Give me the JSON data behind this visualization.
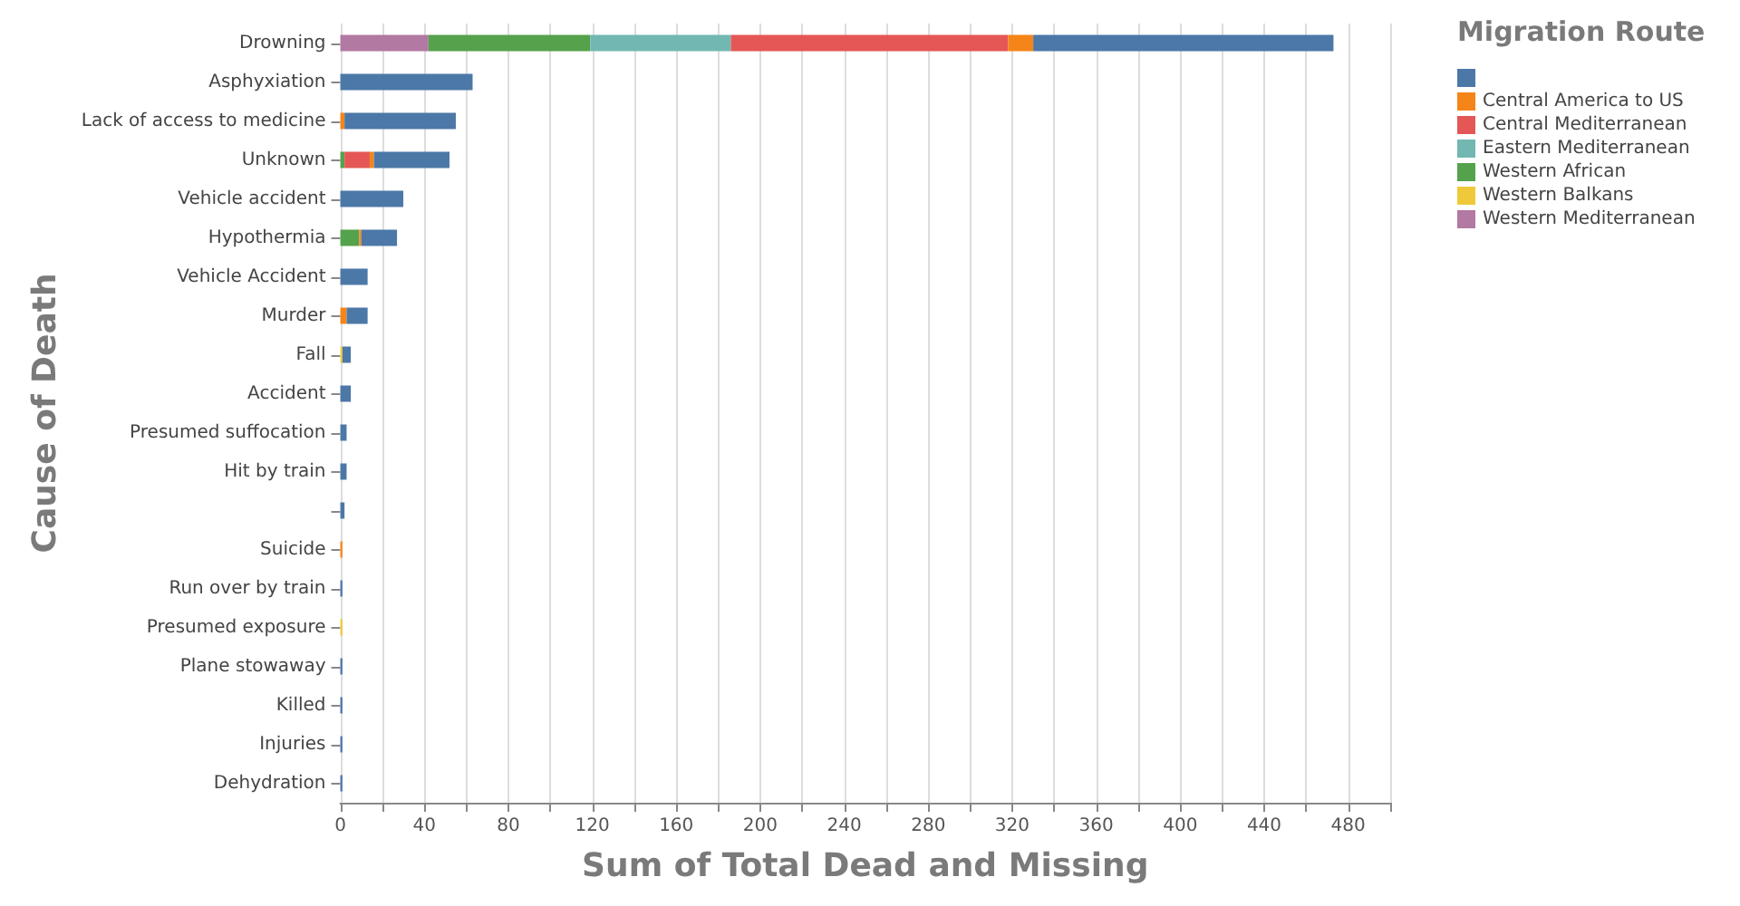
{
  "chart_data": {
    "type": "bar",
    "orientation": "horizontal",
    "stacked": true,
    "xlabel": "Sum of Total Dead and Missing",
    "ylabel": "Cause of Death",
    "legend_title": "Migration Route",
    "legend": "top right",
    "grid": "x",
    "categories": [
      "Drowning",
      "Asphyxiation",
      "Lack of access to medicine",
      "Unknown",
      "Vehicle accident",
      "Hypothermia",
      "Vehicle Accident",
      "Murder",
      "Fall",
      "Accident",
      "Presumed suffocation",
      "Hit by train",
      null,
      "Suicide",
      "Run over by train",
      "Presumed exposure",
      "Plane stowaway",
      "Killed",
      "Injuries",
      "Dehydration"
    ],
    "xlim": [
      0,
      500
    ],
    "xticks": [
      0,
      {
        "value": 20,
        "label": null
      },
      40,
      {
        "value": 60,
        "label": null
      },
      80,
      {
        "value": 100,
        "label": null
      },
      120,
      {
        "value": 140,
        "label": null
      },
      160,
      {
        "value": 180,
        "label": null
      },
      200,
      {
        "value": 220,
        "label": null
      },
      240,
      {
        "value": 260,
        "label": null
      },
      280,
      {
        "value": 300,
        "label": null
      },
      320,
      {
        "value": 340,
        "label": null
      },
      360,
      {
        "value": 380,
        "label": null
      },
      400,
      {
        "value": 420,
        "label": null
      },
      440,
      {
        "value": 460,
        "label": null
      },
      480,
      {
        "value": 500,
        "label": null
      }
    ],
    "series": [
      {
        "name": "Western Mediterranean",
        "color": "#b279a2",
        "values": [
          42,
          null,
          null,
          null,
          null,
          null,
          null,
          null,
          null,
          null,
          null,
          null,
          null,
          null,
          null,
          null,
          null,
          null,
          null,
          null
        ]
      },
      {
        "name": "Western Balkans",
        "color": "#eeca3b",
        "values": [
          null,
          null,
          null,
          null,
          null,
          null,
          null,
          null,
          1,
          null,
          null,
          null,
          null,
          null,
          null,
          1,
          null,
          null,
          null,
          null
        ]
      },
      {
        "name": "Western African",
        "color": "#54a24b",
        "values": [
          77,
          null,
          null,
          2,
          null,
          9,
          null,
          null,
          null,
          null,
          null,
          null,
          null,
          null,
          null,
          null,
          null,
          null,
          null,
          null
        ]
      },
      {
        "name": "Eastern Mediterranean",
        "color": "#72b7b2",
        "values": [
          67,
          null,
          null,
          null,
          null,
          null,
          null,
          null,
          null,
          null,
          null,
          null,
          null,
          null,
          null,
          null,
          null,
          null,
          null,
          null
        ]
      },
      {
        "name": "Central Mediterranean",
        "color": "#e45756",
        "values": [
          132,
          null,
          null,
          12,
          null,
          null,
          null,
          null,
          null,
          null,
          null,
          null,
          null,
          null,
          null,
          null,
          null,
          null,
          null,
          null
        ]
      },
      {
        "name": "Central America to US",
        "color": "#f58518",
        "values": [
          12,
          null,
          2,
          2,
          null,
          1,
          null,
          3,
          null,
          null,
          null,
          null,
          null,
          1,
          null,
          null,
          null,
          null,
          null,
          null
        ]
      },
      {
        "color": "#4c78a8",
        "values": [
          143,
          63,
          53,
          36,
          30,
          17,
          13,
          10,
          4,
          5,
          3,
          3,
          2,
          null,
          1,
          null,
          1,
          1,
          1,
          1
        ]
      }
    ]
  }
}
